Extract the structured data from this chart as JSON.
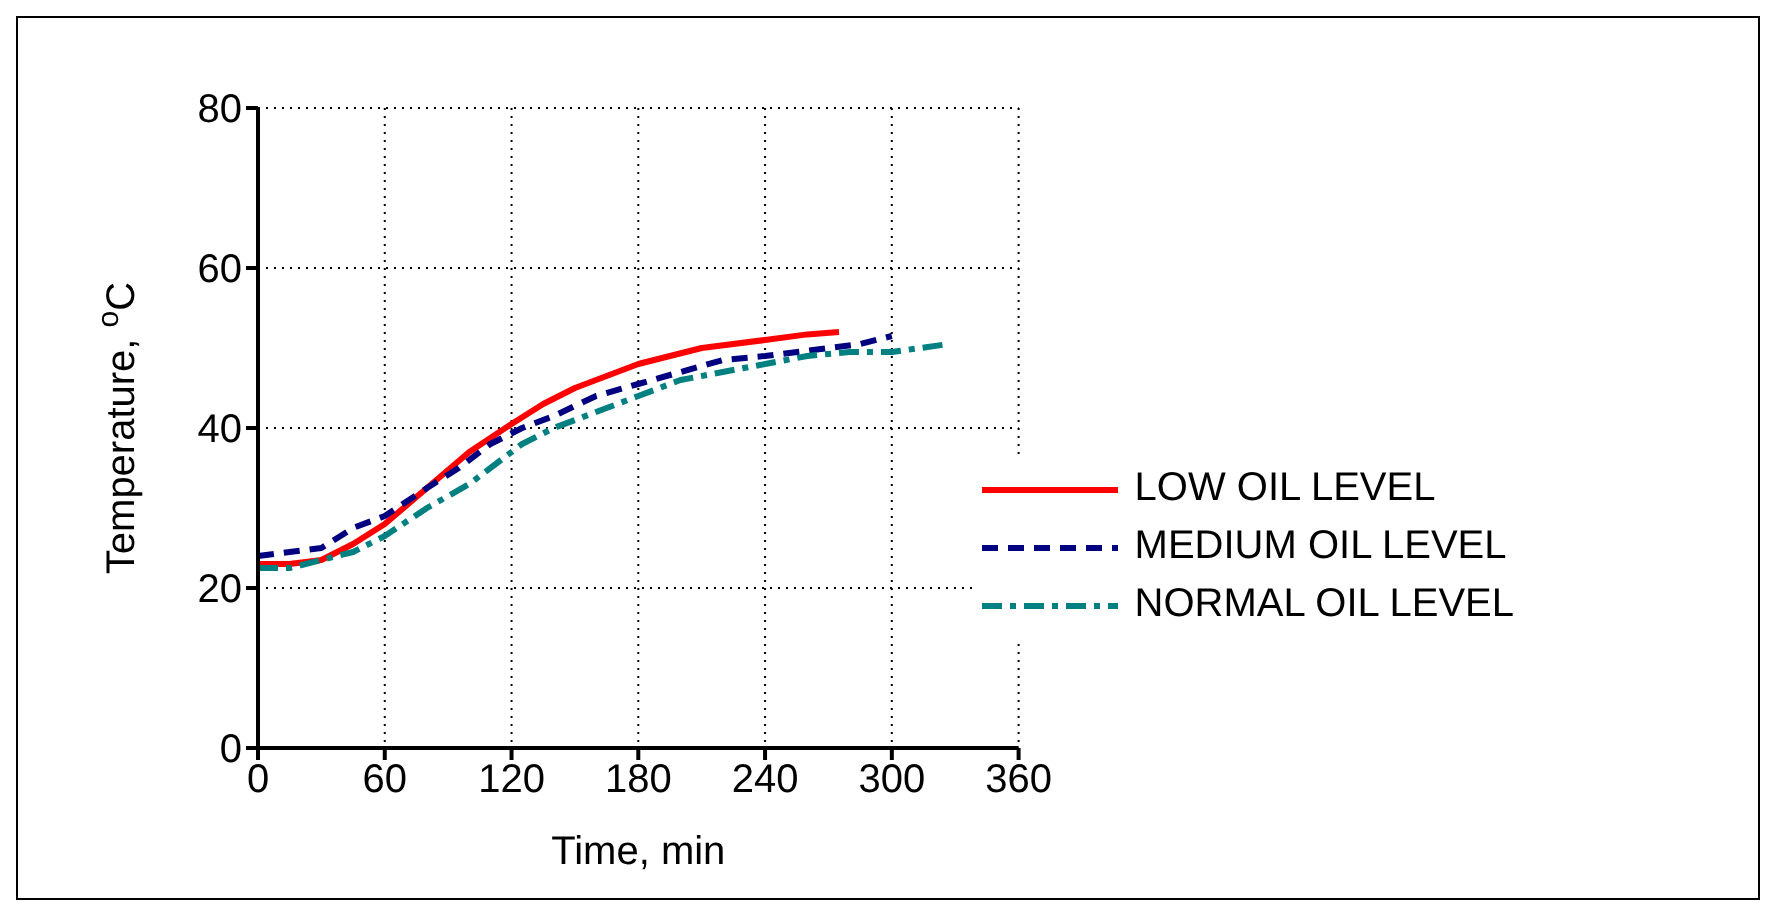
{
  "chart_data": {
    "type": "line",
    "xlabel": "Time, min",
    "ylabel": "Temperature, $^{o}$C",
    "xlim": [
      0,
      360
    ],
    "xticks": [
      0,
      60,
      120,
      180,
      240,
      300,
      360
    ],
    "ylim": [
      0,
      80
    ],
    "yticks": [
      0,
      20,
      40,
      60,
      80
    ],
    "grid": true,
    "legend": "bottom right",
    "marker": "none",
    "series": [
      {
        "name": "LOW OIL LEVEL",
        "color": "#ff0000",
        "line_style": "solid",
        "x": [
          0,
          15,
          30,
          45,
          60,
          80,
          100,
          120,
          135,
          150,
          165,
          180,
          210,
          240,
          260,
          275
        ],
        "values": [
          23,
          23,
          23.5,
          25.5,
          28,
          32.5,
          37,
          40.5,
          43,
          45,
          46.5,
          48,
          50,
          51,
          51.7,
          52
        ]
      },
      {
        "name": "MEDIUM OIL LEVEL",
        "color": "#000080",
        "line_style": "dashed",
        "x": [
          0,
          15,
          30,
          45,
          60,
          80,
          95,
          110,
          125,
          140,
          160,
          180,
          200,
          220,
          240,
          270,
          285,
          300
        ],
        "values": [
          24,
          24.5,
          25,
          27.5,
          29,
          32.5,
          35,
          38,
          40,
          41.5,
          44,
          45.5,
          47,
          48.5,
          49,
          50,
          50.5,
          51.5
        ]
      },
      {
        "name": "NORMAL OIL LEVEL",
        "color": "#008080",
        "line_style": "dashdot",
        "x": [
          0,
          15,
          30,
          45,
          60,
          80,
          100,
          115,
          125,
          140,
          160,
          180,
          200,
          220,
          240,
          260,
          280,
          300,
          327
        ],
        "values": [
          22.5,
          22.5,
          23.5,
          24.5,
          26.5,
          30,
          33,
          36,
          38,
          40,
          42,
          44,
          46,
          47,
          48,
          49,
          49.5,
          49.5,
          50.5
        ]
      }
    ]
  }
}
